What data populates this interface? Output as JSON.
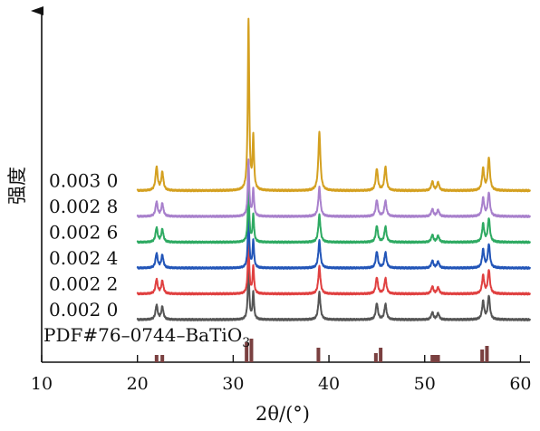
{
  "chart_data": {
    "type": "line",
    "title": "",
    "xlabel": "2θ/(°)",
    "ylabel": "强度",
    "xlim": [
      10,
      61
    ],
    "x_ticks": [
      10,
      20,
      30,
      40,
      50,
      60
    ],
    "x_tick_labels": [
      "10",
      "20",
      "30",
      "40",
      "50",
      "60"
    ],
    "grid": false,
    "peak_positions": [
      22.0,
      22.6,
      31.6,
      32.1,
      39.0,
      45.0,
      45.9,
      50.8,
      51.4,
      56.1,
      56.7
    ],
    "series": [
      {
        "name": "0.002 0",
        "color": "#555555",
        "peak_heights": [
          16,
          14,
          58,
          30,
          30,
          18,
          17,
          8,
          7,
          20,
          26
        ]
      },
      {
        "name": "0.002 2",
        "color": "#e04040",
        "peak_heights": [
          16,
          14,
          58,
          30,
          30,
          18,
          17,
          8,
          7,
          20,
          26
        ]
      },
      {
        "name": "0.002 4",
        "color": "#2255b8",
        "peak_heights": [
          16,
          14,
          60,
          30,
          30,
          18,
          17,
          8,
          7,
          20,
          26
        ]
      },
      {
        "name": "0.002 6",
        "color": "#2eaa62",
        "peak_heights": [
          16,
          14,
          60,
          30,
          30,
          18,
          17,
          8,
          7,
          20,
          26
        ]
      },
      {
        "name": "0.002 8",
        "color": "#a880cc",
        "peak_heights": [
          16,
          14,
          62,
          30,
          32,
          18,
          17,
          8,
          7,
          20,
          26
        ]
      },
      {
        "name": "0.003 0",
        "color": "#d4a020",
        "peak_heights": [
          26,
          20,
          188,
          58,
          64,
          24,
          26,
          10,
          9,
          24,
          36
        ]
      }
    ],
    "reference": {
      "label": "PDF#76–0744–BaTiO",
      "label_sub": "3",
      "color": "#7a4040",
      "sticks": [
        {
          "x": 22.0,
          "h": 8
        },
        {
          "x": 22.6,
          "h": 8
        },
        {
          "x": 31.4,
          "h": 22
        },
        {
          "x": 31.9,
          "h": 26
        },
        {
          "x": 38.9,
          "h": 16
        },
        {
          "x": 44.9,
          "h": 10
        },
        {
          "x": 45.4,
          "h": 16
        },
        {
          "x": 50.8,
          "h": 8
        },
        {
          "x": 51.1,
          "h": 8
        },
        {
          "x": 51.4,
          "h": 8
        },
        {
          "x": 56.0,
          "h": 14
        },
        {
          "x": 56.5,
          "h": 18
        }
      ]
    }
  }
}
